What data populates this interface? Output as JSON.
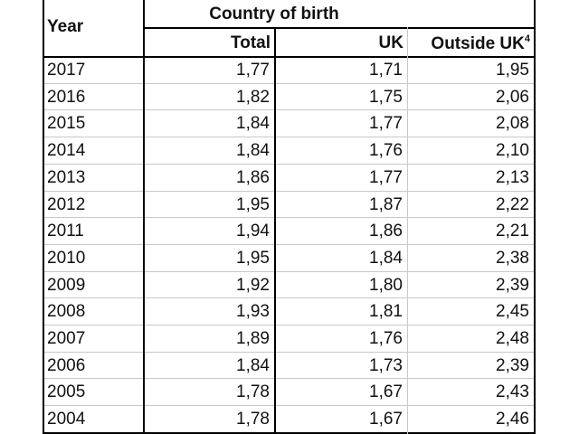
{
  "table": {
    "header": {
      "year": "Year",
      "group": "Country of birth",
      "columns": [
        "Total",
        "UK",
        "Outside UK"
      ],
      "footnote": "4"
    },
    "rows": [
      [
        "2017",
        "1,77",
        "1,71",
        "1,95"
      ],
      [
        "2016",
        "1,82",
        "1,75",
        "2,06"
      ],
      [
        "2015",
        "1,84",
        "1,77",
        "2,08"
      ],
      [
        "2014",
        "1,84",
        "1,76",
        "2,10"
      ],
      [
        "2013",
        "1,86",
        "1,77",
        "2,13"
      ],
      [
        "2012",
        "1,95",
        "1,87",
        "2,22"
      ],
      [
        "2011",
        "1,94",
        "1,86",
        "2,21"
      ],
      [
        "2010",
        "1,95",
        "1,84",
        "2,38"
      ],
      [
        "2009",
        "1,92",
        "1,80",
        "2,39"
      ],
      [
        "2008",
        "1,93",
        "1,81",
        "2,45"
      ],
      [
        "2007",
        "1,89",
        "1,76",
        "2,48"
      ],
      [
        "2006",
        "1,84",
        "1,73",
        "2,39"
      ],
      [
        "2005",
        "1,78",
        "1,67",
        "2,43"
      ],
      [
        "2004",
        "1,78",
        "1,67",
        "2,46"
      ]
    ]
  }
}
